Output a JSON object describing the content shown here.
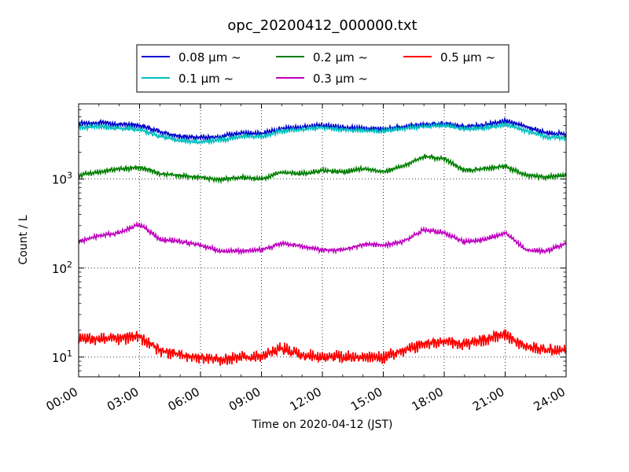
{
  "chart_data": {
    "type": "line",
    "title": "opc_20200412_000000.txt",
    "xlabel": "Time on 2020-04-12 (JST)",
    "ylabel": "Count / L",
    "x_ticks": [
      "00:00",
      "03:00",
      "06:00",
      "09:00",
      "12:00",
      "15:00",
      "18:00",
      "21:00",
      "24:00"
    ],
    "xlim": [
      "2020-04-12 00:00",
      "2020-04-13 00:00"
    ],
    "ylim": [
      6,
      7000
    ],
    "yscale": "log",
    "y_ticks": [
      {
        "value": 10,
        "base": "10",
        "exp": "1"
      },
      {
        "value": 100,
        "base": "10",
        "exp": "2"
      },
      {
        "value": 1000,
        "base": "10",
        "exp": "3"
      }
    ],
    "grid": true,
    "legend_position": "top-center",
    "series": [
      {
        "name": "0.08 μm ~",
        "color": "#0000cc",
        "x": [
          "00:00",
          "01:00",
          "02:00",
          "03:00",
          "04:00",
          "05:00",
          "06:00",
          "07:00",
          "08:00",
          "09:00",
          "10:00",
          "11:00",
          "12:00",
          "13:00",
          "14:00",
          "15:00",
          "16:00",
          "17:00",
          "18:00",
          "19:00",
          "20:00",
          "21:00",
          "22:00",
          "23:00",
          "24:00"
        ],
        "y": [
          4200,
          4300,
          4100,
          4000,
          3400,
          3000,
          2900,
          3000,
          3300,
          3200,
          3700,
          3850,
          4000,
          3800,
          3700,
          3650,
          3900,
          4100,
          4200,
          3900,
          4050,
          4500,
          3900,
          3300,
          3200
        ]
      },
      {
        "name": "0.1 μm ~",
        "color": "#00bfbf",
        "x": [
          "00:00",
          "01:00",
          "02:00",
          "03:00",
          "04:00",
          "05:00",
          "06:00",
          "07:00",
          "08:00",
          "09:00",
          "10:00",
          "11:00",
          "12:00",
          "13:00",
          "14:00",
          "15:00",
          "16:00",
          "17:00",
          "18:00",
          "19:00",
          "20:00",
          "21:00",
          "22:00",
          "23:00",
          "24:00"
        ],
        "y": [
          3800,
          3900,
          3700,
          3600,
          3000,
          2700,
          2600,
          2750,
          3000,
          3000,
          3450,
          3600,
          3800,
          3600,
          3500,
          3450,
          3700,
          3900,
          4000,
          3650,
          3750,
          4100,
          3500,
          3000,
          2900
        ]
      },
      {
        "name": "0.2 μm ~",
        "color": "#007f00",
        "x": [
          "00:00",
          "01:00",
          "02:00",
          "03:00",
          "04:00",
          "05:00",
          "06:00",
          "07:00",
          "08:00",
          "09:00",
          "10:00",
          "11:00",
          "12:00",
          "13:00",
          "14:00",
          "15:00",
          "16:00",
          "17:00",
          "18:00",
          "19:00",
          "20:00",
          "21:00",
          "22:00",
          "23:00",
          "24:00"
        ],
        "y": [
          1100,
          1200,
          1300,
          1350,
          1150,
          1100,
          1050,
          980,
          1050,
          1000,
          1200,
          1150,
          1250,
          1200,
          1300,
          1200,
          1400,
          1800,
          1700,
          1250,
          1300,
          1400,
          1100,
          1050,
          1100
        ]
      },
      {
        "name": "0.3 μm ~",
        "color": "#bf00bf",
        "x": [
          "00:00",
          "01:00",
          "02:00",
          "03:00",
          "04:00",
          "05:00",
          "06:00",
          "07:00",
          "08:00",
          "09:00",
          "10:00",
          "11:00",
          "12:00",
          "13:00",
          "14:00",
          "15:00",
          "16:00",
          "17:00",
          "18:00",
          "19:00",
          "20:00",
          "21:00",
          "22:00",
          "23:00",
          "24:00"
        ],
        "y": [
          200,
          230,
          250,
          310,
          210,
          200,
          180,
          155,
          155,
          160,
          190,
          175,
          160,
          160,
          185,
          180,
          200,
          270,
          250,
          195,
          210,
          250,
          160,
          155,
          190
        ]
      },
      {
        "name": "0.5 μm ~",
        "color": "#ff0000",
        "x": [
          "00:00",
          "01:00",
          "02:00",
          "03:00",
          "04:00",
          "05:00",
          "06:00",
          "07:00",
          "08:00",
          "09:00",
          "10:00",
          "11:00",
          "12:00",
          "13:00",
          "14:00",
          "15:00",
          "16:00",
          "17:00",
          "18:00",
          "19:00",
          "20:00",
          "21:00",
          "22:00",
          "23:00",
          "24:00"
        ],
        "y": [
          16,
          16,
          16,
          17,
          12,
          10.5,
          10,
          9.5,
          10,
          10,
          12.5,
          10.5,
          10,
          10,
          10,
          9.8,
          12,
          14,
          15,
          14,
          16,
          18,
          13,
          12,
          12
        ]
      }
    ]
  }
}
